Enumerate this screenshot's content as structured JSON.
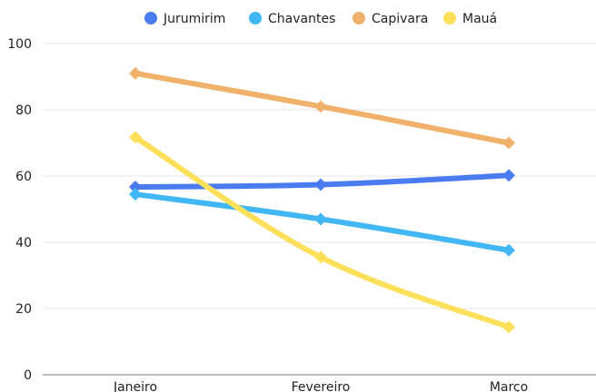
{
  "chart_data": {
    "type": "line",
    "categories": [
      "Janeiro",
      "Fevereiro",
      "Março"
    ],
    "series": [
      {
        "name": "Jurumirim",
        "color": "#4a7cf0",
        "values": [
          56.7,
          57.4,
          60.2
        ]
      },
      {
        "name": "Chavantes",
        "color": "#41b8f5",
        "values": [
          54.5,
          47.0,
          37.6
        ]
      },
      {
        "name": "Capivara",
        "color": "#f0b26b",
        "values": [
          91.0,
          81.0,
          70.0
        ]
      },
      {
        "name": "Mauá",
        "color": "#fde05a",
        "values": [
          71.7,
          35.5,
          14.4
        ]
      }
    ],
    "ylim": [
      0,
      100
    ],
    "yticks": [
      0,
      20,
      40,
      60,
      80,
      100
    ],
    "grid": true,
    "legend_position": "top-center",
    "marker": "diamond",
    "title": "",
    "xlabel": "",
    "ylabel": ""
  }
}
